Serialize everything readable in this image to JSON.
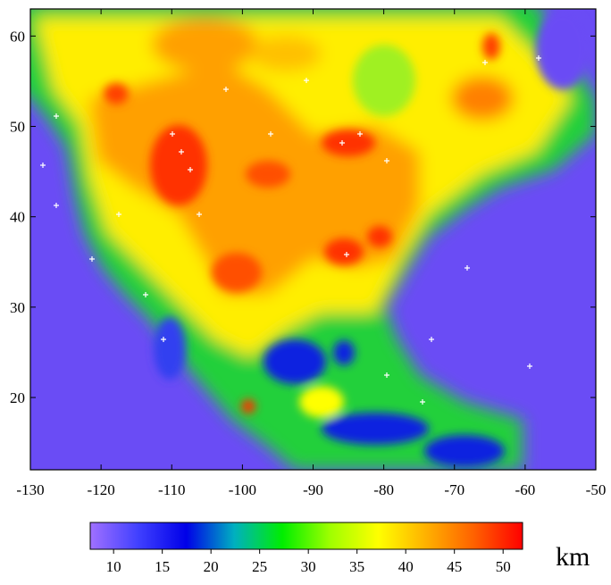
{
  "chart_data": {
    "type": "map",
    "xlim": [
      -130,
      -50
    ],
    "ylim": [
      12,
      63
    ],
    "xticks": [
      -130,
      -120,
      -110,
      -100,
      -90,
      -80,
      -70,
      -60,
      -50
    ],
    "yticks": [
      20,
      30,
      40,
      50,
      60
    ],
    "colorbar": {
      "range": [
        7.6,
        52
      ],
      "ticks": [
        10,
        15,
        20,
        25,
        30,
        35,
        40,
        45,
        50
      ],
      "label": "km",
      "colors": [
        "#a070ff",
        "#4040ff",
        "#0000e8",
        "#00b0c0",
        "#00ee00",
        "#a0ff00",
        "#ffff00",
        "#ffb000",
        "#ff6000",
        "#ff0000"
      ]
    }
  }
}
